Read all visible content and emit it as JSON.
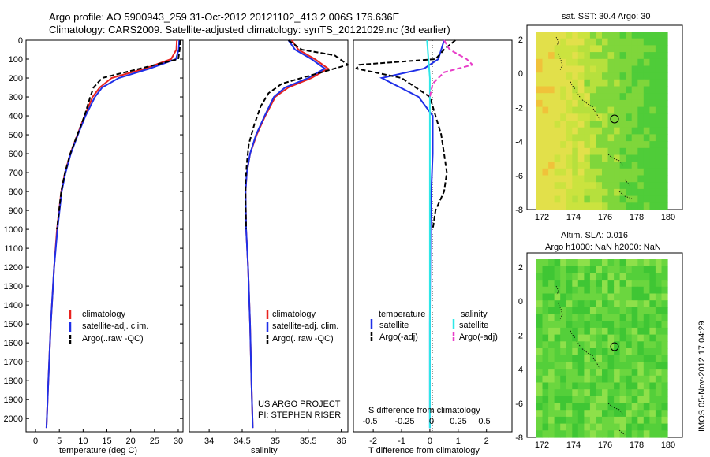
{
  "header": {
    "line1": "Argo profile: AO 5900943_259 31-Oct-2012 20121102_413 2.006S 176.636E",
    "line2": "Climatology: CARS2009. Satellite-adjusted climatology: synTS_20121029.nc (3d earlier)"
  },
  "colors": {
    "climatology": "#e8231f",
    "satellite": "#1f2fe8",
    "argo": "#000000",
    "salinity_satellite": "#2ee8e8",
    "salinity_argo": "#e83cc8"
  },
  "panels": {
    "temperature": {
      "xlabel": "temperature (deg C)",
      "legend": [
        "climatology",
        "satellite-adj. clim.",
        "Argo(..raw -QC)"
      ]
    },
    "salinity": {
      "xlabel": "salinity",
      "legend": [
        "climatology",
        "satellite-adj. clim.",
        "Argo(..raw -QC)"
      ],
      "credit1": "US ARGO PROJECT",
      "credit2": "PI: STEPHEN RISER"
    },
    "difference": {
      "top_label": "S difference from climatology",
      "xlabel": "T difference from climatology",
      "legend_temperature": "temperature",
      "legend_salinity": "salinity",
      "legend_items": [
        "satellite",
        "Argo(-adj)",
        "satellite",
        "Argo(-adj)"
      ]
    },
    "map_sst": {
      "title": "sat. SST: 30.4  Argo: 30",
      "y_ticks": [
        "2",
        "0",
        "-2",
        "-4",
        "-6",
        "-8"
      ],
      "x_ticks": [
        "172",
        "174",
        "176",
        "178",
        "180"
      ]
    },
    "map_sla": {
      "title1": "Altim. SLA: 0.016",
      "title2": "Argo h1000: NaN h2000: NaN",
      "y_ticks": [
        "2",
        "0",
        "-2",
        "-4",
        "-6",
        "-8"
      ],
      "x_ticks": [
        "172",
        "174",
        "176",
        "178",
        "180"
      ]
    }
  },
  "footer_stamp": "IMOS 05-Nov-2012 17:04:29",
  "chart_data": [
    {
      "type": "line",
      "name": "temperature",
      "xlabel": "temperature (deg C)",
      "ylabel": "",
      "xlim": [
        -2,
        31
      ],
      "ylim": [
        2070,
        0
      ],
      "x_ticks": [
        0,
        5,
        10,
        15,
        20,
        25,
        30
      ],
      "y_ticks": [
        0,
        100,
        200,
        300,
        400,
        500,
        600,
        700,
        800,
        900,
        1000,
        1100,
        1200,
        1300,
        1400,
        1500,
        1600,
        1700,
        1800,
        1900,
        2000
      ],
      "series": [
        {
          "name": "climatology",
          "depth": [
            0,
            50,
            100,
            150,
            200,
            250,
            300,
            400,
            500,
            600,
            700,
            800,
            1000,
            1200,
            1500,
            1800,
            2050
          ],
          "values": [
            29.7,
            29.6,
            28.5,
            23,
            16,
            13.5,
            12,
            10.3,
            8.8,
            7.3,
            6.2,
            5.4,
            4.5,
            3.9,
            3.2,
            2.7,
            2.3
          ]
        },
        {
          "name": "satellite-adj. clim.",
          "depth": [
            0,
            50,
            100,
            150,
            200,
            250,
            300,
            400,
            500,
            600,
            700,
            800,
            1000,
            1200,
            1500,
            1800,
            2050
          ],
          "values": [
            30.2,
            30.1,
            29.5,
            24,
            17.5,
            14,
            12.5,
            10.5,
            8.9,
            7.4,
            6.3,
            5.5,
            4.6,
            3.9,
            3.2,
            2.7,
            2.3
          ]
        },
        {
          "name": "Argo(..raw -QC)",
          "depth": [
            0,
            50,
            100,
            150,
            200,
            250,
            300,
            400,
            500,
            600,
            700,
            800,
            1000
          ],
          "values": [
            30.4,
            30.3,
            30.0,
            22,
            14,
            12.2,
            11.5,
            10.3,
            8.8,
            7.3,
            6.2,
            5.4,
            4.5
          ]
        }
      ]
    },
    {
      "type": "line",
      "name": "salinity",
      "xlabel": "salinity",
      "ylabel": "",
      "xlim": [
        33.7,
        36.1
      ],
      "ylim": [
        2070,
        0
      ],
      "x_ticks": [
        34,
        34.5,
        35,
        35.5,
        36
      ],
      "series": [
        {
          "name": "climatology",
          "depth": [
            0,
            50,
            100,
            150,
            200,
            250,
            300,
            400,
            500,
            600,
            700,
            800,
            1000,
            1200,
            1500,
            1800,
            2050
          ],
          "values": [
            35.25,
            35.35,
            35.6,
            35.8,
            35.55,
            35.2,
            35.0,
            34.85,
            34.72,
            34.62,
            34.57,
            34.55,
            34.56,
            34.59,
            34.62,
            34.64,
            34.66
          ]
        },
        {
          "name": "satellite-adj. clim.",
          "depth": [
            0,
            50,
            100,
            150,
            200,
            250,
            300,
            400,
            500,
            600,
            700,
            800,
            1000,
            1200,
            1500,
            1800,
            2050
          ],
          "values": [
            35.2,
            35.3,
            35.55,
            35.75,
            35.5,
            35.15,
            34.98,
            34.84,
            34.71,
            34.62,
            34.57,
            34.55,
            34.56,
            34.59,
            34.62,
            34.64,
            34.66
          ]
        },
        {
          "name": "Argo(..raw -QC)",
          "depth": [
            0,
            50,
            80,
            130,
            180,
            230,
            280,
            350,
            450,
            550,
            650,
            750,
            850,
            1000
          ],
          "values": [
            35.2,
            35.4,
            35.9,
            36.1,
            35.6,
            35.1,
            34.9,
            34.78,
            34.68,
            34.6,
            34.57,
            34.55,
            34.55,
            34.56
          ]
        }
      ]
    },
    {
      "type": "line",
      "name": "difference",
      "xlabel": "T difference from climatology",
      "top_label": "S difference from climatology",
      "xlim": [
        -2.7,
        2.9
      ],
      "x_ticks": [
        -2,
        -1,
        0,
        1,
        2
      ],
      "top_ticks": [
        "-0.5",
        "-0.25",
        "0",
        "0.25",
        "0.5"
      ],
      "ylim": [
        2070,
        0
      ],
      "series": [
        {
          "name": "temperature satellite",
          "depth": [
            0,
            50,
            100,
            150,
            200,
            300,
            400,
            600,
            800,
            1000,
            1500,
            2050
          ],
          "values": [
            0.5,
            0.4,
            0.3,
            -0.2,
            -1.7,
            -0.4,
            0.1,
            0.1,
            0.05,
            0.02,
            0.0,
            0.0
          ]
        },
        {
          "name": "temperature Argo(-adj)",
          "depth": [
            0,
            50,
            100,
            130,
            150,
            200,
            250,
            300,
            400,
            500,
            600,
            700,
            800,
            900,
            1000
          ],
          "values": [
            0.9,
            0.5,
            0.2,
            -2.5,
            -2.6,
            -1.0,
            -0.5,
            0.0,
            0.2,
            0.4,
            0.5,
            0.6,
            0.5,
            0.2,
            0.1
          ]
        },
        {
          "name": "salinity satellite",
          "depth": [
            0,
            100,
            200,
            300,
            500,
            1000,
            2050
          ],
          "values": [
            -0.1,
            -0.05,
            0.0,
            0.0,
            0.0,
            0.0,
            0.0
          ]
        },
        {
          "name": "salinity Argo(-adj)",
          "depth": [
            0,
            50,
            100,
            130,
            170,
            230,
            300
          ],
          "values": [
            0.5,
            0.7,
            1.3,
            1.5,
            0.5,
            0.1,
            0.0
          ]
        }
      ]
    }
  ]
}
